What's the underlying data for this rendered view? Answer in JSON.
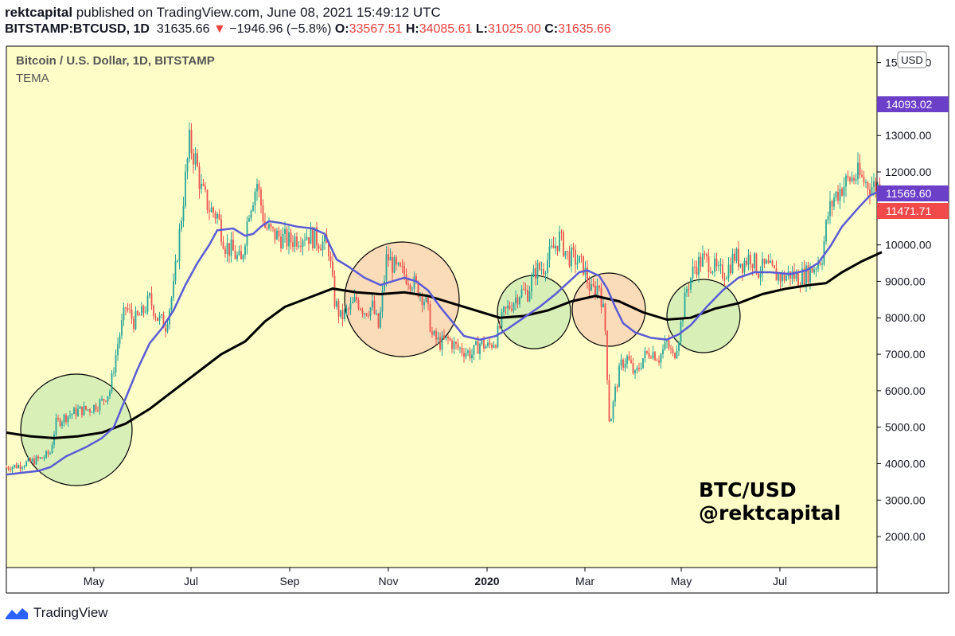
{
  "header": {
    "author": "rektcapital",
    "published_text": "published on TradingView.com, June 08, 2021 15:49:12 UTC",
    "symbol": "BITSTAMP:BTCUSD, 1D",
    "last": "31635.66",
    "change": "−1946.96 (−5.8%)",
    "open_label": "O:",
    "open": "33567.51",
    "high_label": "H:",
    "high": "34085.61",
    "low_label": "L:",
    "low": "31025.00",
    "close_label": "C:",
    "close": "31635.66"
  },
  "legend": {
    "title": "Bitcoin / U.S. Dollar, 1D, BITSTAMP",
    "indicator": "TEMA"
  },
  "watermark": {
    "line1": "BTC/USD",
    "line2": "@rektcapital"
  },
  "footer": {
    "brand": "TradingView"
  },
  "colors": {
    "background": "#fdfdc8",
    "up": "#26a69a",
    "down": "#ef5350",
    "tema": "#5b5bd6",
    "ma": "#000000",
    "green_circle": "#d9efb8",
    "orange_circle": "#fbdcb8",
    "label_purple": "#6c3fc9",
    "label_red": "#f24a4a"
  },
  "chart_data": {
    "type": "candlestick",
    "currency_label": "USD",
    "x_labels": [
      "May",
      "Jul",
      "Sep",
      "Nov",
      "2020",
      "Mar",
      "May",
      "Jul"
    ],
    "y_ticks": [
      2000,
      3000,
      4000,
      5000,
      6000,
      7000,
      8000,
      9000,
      10000,
      11000,
      12000,
      13000,
      14000,
      15000
    ],
    "y_tick_labels": [
      "2000.00",
      "3000.00",
      "4000.00",
      "5000.00",
      "6000.00",
      "7000.00",
      "8000.00",
      "9000.00",
      "10000.00",
      "",
      "12000.00",
      "13000.00",
      "",
      "15000.00"
    ],
    "ylim": [
      1150,
      15450
    ],
    "price_labels": [
      {
        "value": 14093.02,
        "text": "14093.02",
        "color": "#6c3fc9"
      },
      {
        "value": 11569.6,
        "text": "11569.60",
        "color": "#6c3fc9"
      },
      {
        "value": 11471.71,
        "text": "11471.71",
        "color": "#f24a4a"
      }
    ],
    "price_path": [
      [
        0,
        3900
      ],
      [
        15,
        3950
      ],
      [
        30,
        4050
      ],
      [
        45,
        4150
      ],
      [
        55,
        4300
      ],
      [
        62,
        5100
      ],
      [
        75,
        5300
      ],
      [
        90,
        5450
      ],
      [
        105,
        5500
      ],
      [
        120,
        5700
      ],
      [
        130,
        6000
      ],
      [
        140,
        7300
      ],
      [
        150,
        8300
      ],
      [
        160,
        7900
      ],
      [
        170,
        8100
      ],
      [
        180,
        8500
      ],
      [
        190,
        8000
      ],
      [
        200,
        7800
      ],
      [
        210,
        8800
      ],
      [
        220,
        10800
      ],
      [
        230,
        12800
      ],
      [
        238,
        12300
      ],
      [
        245,
        11500
      ],
      [
        255,
        11000
      ],
      [
        265,
        10800
      ],
      [
        275,
        10000
      ],
      [
        285,
        9800
      ],
      [
        295,
        9500
      ],
      [
        305,
        11000
      ],
      [
        315,
        11700
      ],
      [
        325,
        10500
      ],
      [
        335,
        10300
      ],
      [
        345,
        10200
      ],
      [
        355,
        10100
      ],
      [
        365,
        10200
      ],
      [
        375,
        10300
      ],
      [
        385,
        10200
      ],
      [
        395,
        10100
      ],
      [
        405,
        9900
      ],
      [
        412,
        8500
      ],
      [
        420,
        8000
      ],
      [
        430,
        8200
      ],
      [
        440,
        8500
      ],
      [
        450,
        8200
      ],
      [
        460,
        8300
      ],
      [
        468,
        7700
      ],
      [
        478,
        9700
      ],
      [
        490,
        9300
      ],
      [
        500,
        9200
      ],
      [
        510,
        9000
      ],
      [
        520,
        8700
      ],
      [
        528,
        8400
      ],
      [
        535,
        7500
      ],
      [
        545,
        7300
      ],
      [
        555,
        7400
      ],
      [
        565,
        7200
      ],
      [
        575,
        7100
      ],
      [
        585,
        7000
      ],
      [
        595,
        7300
      ],
      [
        605,
        7200
      ],
      [
        615,
        7400
      ],
      [
        625,
        8100
      ],
      [
        635,
        8400
      ],
      [
        645,
        8700
      ],
      [
        655,
        8700
      ],
      [
        665,
        9300
      ],
      [
        675,
        9400
      ],
      [
        685,
        9800
      ],
      [
        695,
        10200
      ],
      [
        705,
        9700
      ],
      [
        715,
        9600
      ],
      [
        725,
        9400
      ],
      [
        735,
        8700
      ],
      [
        745,
        8900
      ],
      [
        752,
        7900
      ],
      [
        758,
        5000
      ],
      [
        765,
        6000
      ],
      [
        772,
        6700
      ],
      [
        780,
        6900
      ],
      [
        790,
        6400
      ],
      [
        800,
        6900
      ],
      [
        810,
        7100
      ],
      [
        820,
        6900
      ],
      [
        830,
        7300
      ],
      [
        838,
        6900
      ],
      [
        845,
        7500
      ],
      [
        855,
        8800
      ],
      [
        865,
        9400
      ],
      [
        875,
        9600
      ],
      [
        885,
        9500
      ],
      [
        895,
        9200
      ],
      [
        905,
        9300
      ],
      [
        915,
        9700
      ],
      [
        925,
        9500
      ],
      [
        935,
        9700
      ],
      [
        945,
        9300
      ],
      [
        955,
        9400
      ],
      [
        965,
        9200
      ],
      [
        975,
        9100
      ],
      [
        985,
        9200
      ],
      [
        995,
        9100
      ],
      [
        1005,
        9200
      ],
      [
        1015,
        9400
      ],
      [
        1025,
        9700
      ],
      [
        1032,
        10800
      ],
      [
        1040,
        11300
      ],
      [
        1050,
        11600
      ],
      [
        1060,
        11800
      ],
      [
        1070,
        11900
      ],
      [
        1080,
        11700
      ],
      [
        1090,
        11600
      ],
      [
        1100,
        11600
      ]
    ],
    "candle_range_x": [
      0,
      1100
    ],
    "tema_path": [
      [
        0,
        3700
      ],
      [
        20,
        3750
      ],
      [
        40,
        3800
      ],
      [
        55,
        3900
      ],
      [
        75,
        4200
      ],
      [
        100,
        4450
      ],
      [
        120,
        4700
      ],
      [
        135,
        5000
      ],
      [
        150,
        5800
      ],
      [
        165,
        6600
      ],
      [
        180,
        7300
      ],
      [
        195,
        7700
      ],
      [
        210,
        8200
      ],
      [
        225,
        8900
      ],
      [
        240,
        9500
      ],
      [
        255,
        10000
      ],
      [
        265,
        10400
      ],
      [
        285,
        10450
      ],
      [
        300,
        10250
      ],
      [
        310,
        10300
      ],
      [
        320,
        10500
      ],
      [
        330,
        10650
      ],
      [
        345,
        10600
      ],
      [
        365,
        10500
      ],
      [
        385,
        10450
      ],
      [
        400,
        10300
      ],
      [
        415,
        9600
      ],
      [
        430,
        9400
      ],
      [
        450,
        9100
      ],
      [
        470,
        8900
      ],
      [
        485,
        9000
      ],
      [
        500,
        9100
      ],
      [
        515,
        9000
      ],
      [
        530,
        8750
      ],
      [
        545,
        8300
      ],
      [
        560,
        7900
      ],
      [
        575,
        7500
      ],
      [
        595,
        7400
      ],
      [
        615,
        7500
      ],
      [
        630,
        7700
      ],
      [
        650,
        8000
      ],
      [
        670,
        8300
      ],
      [
        690,
        8650
      ],
      [
        705,
        8950
      ],
      [
        720,
        9250
      ],
      [
        730,
        9300
      ],
      [
        745,
        9150
      ],
      [
        755,
        8800
      ],
      [
        765,
        8300
      ],
      [
        775,
        7850
      ],
      [
        790,
        7600
      ],
      [
        810,
        7450
      ],
      [
        830,
        7400
      ],
      [
        845,
        7550
      ],
      [
        860,
        7800
      ],
      [
        880,
        8300
      ],
      [
        900,
        8750
      ],
      [
        920,
        9100
      ],
      [
        940,
        9250
      ],
      [
        960,
        9250
      ],
      [
        985,
        9200
      ],
      [
        1005,
        9300
      ],
      [
        1020,
        9500
      ],
      [
        1035,
        9950
      ],
      [
        1050,
        10500
      ],
      [
        1070,
        11000
      ],
      [
        1085,
        11350
      ],
      [
        1100,
        11500
      ]
    ],
    "ma_path": [
      [
        0,
        4850
      ],
      [
        30,
        4750
      ],
      [
        60,
        4700
      ],
      [
        90,
        4750
      ],
      [
        120,
        4850
      ],
      [
        150,
        5100
      ],
      [
        180,
        5500
      ],
      [
        210,
        6000
      ],
      [
        240,
        6500
      ],
      [
        270,
        7000
      ],
      [
        300,
        7350
      ],
      [
        325,
        7900
      ],
      [
        350,
        8300
      ],
      [
        380,
        8550
      ],
      [
        410,
        8800
      ],
      [
        440,
        8700
      ],
      [
        470,
        8650
      ],
      [
        500,
        8700
      ],
      [
        530,
        8600
      ],
      [
        560,
        8400
      ],
      [
        590,
        8200
      ],
      [
        620,
        8000
      ],
      [
        650,
        8050
      ],
      [
        680,
        8200
      ],
      [
        710,
        8450
      ],
      [
        740,
        8600
      ],
      [
        770,
        8450
      ],
      [
        800,
        8150
      ],
      [
        830,
        7950
      ],
      [
        860,
        8000
      ],
      [
        890,
        8250
      ],
      [
        920,
        8400
      ],
      [
        950,
        8650
      ],
      [
        980,
        8800
      ],
      [
        1010,
        8900
      ],
      [
        1030,
        8950
      ],
      [
        1050,
        9250
      ],
      [
        1075,
        9550
      ],
      [
        1100,
        9800
      ]
    ],
    "annotations": [
      {
        "shape": "circle",
        "cx": 96,
        "cy": 540,
        "r": 70,
        "fill": "#d9efb8"
      },
      {
        "shape": "circle",
        "cx": 505,
        "cy": 376,
        "r": 72,
        "fill": "#fbdcb8"
      },
      {
        "shape": "circle",
        "cx": 671,
        "cy": 392,
        "r": 46,
        "fill": "#d9efb8"
      },
      {
        "shape": "circle",
        "cx": 765,
        "cy": 389,
        "r": 46,
        "fill": "#fbdcb8"
      },
      {
        "shape": "circle",
        "cx": 884,
        "cy": 397,
        "r": 46,
        "fill": "#d9efb8"
      }
    ]
  }
}
